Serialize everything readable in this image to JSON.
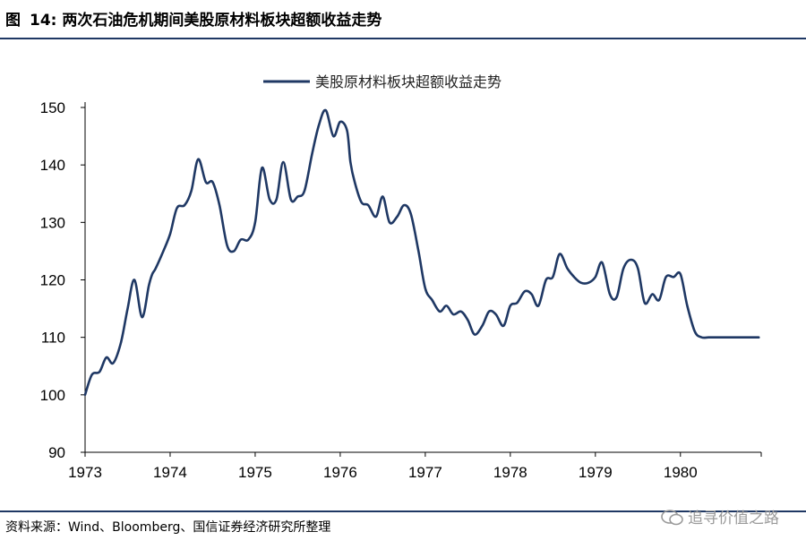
{
  "figure": {
    "label": "图",
    "number": "14:",
    "title": "两次石油危机期间美股原材料板块超额收益走势"
  },
  "source": "资料来源：Wind、Bloomberg、国信证券经济研究所整理",
  "watermark": "追寻价值之路",
  "colors": {
    "line": "#1f3864",
    "rule": "#1f3864",
    "axis": "#000000"
  },
  "chart_data": {
    "type": "line",
    "legend_position": "top-center",
    "grid": false,
    "xlim": [
      1973,
      1980.95
    ],
    "ylim": [
      90,
      150
    ],
    "xticks": [
      1973,
      1974,
      1975,
      1976,
      1977,
      1978,
      1979,
      1980
    ],
    "xtick_labels": [
      "1973",
      "1974",
      "1975",
      "1976",
      "1977",
      "1978",
      "1979",
      "1980"
    ],
    "yticks": [
      90,
      100,
      110,
      120,
      130,
      140,
      150
    ],
    "ytick_labels": [
      "90",
      "100",
      "110",
      "120",
      "130",
      "140",
      "150"
    ],
    "series": [
      {
        "name": "美股原材料板块超额收益走势",
        "x": [
          1973.0,
          1973.08,
          1973.17,
          1973.25,
          1973.33,
          1973.42,
          1973.5,
          1973.58,
          1973.67,
          1973.75,
          1973.79,
          1973.83,
          1973.92,
          1974.0,
          1974.08,
          1974.17,
          1974.25,
          1974.33,
          1974.42,
          1974.5,
          1974.58,
          1974.67,
          1974.75,
          1974.83,
          1974.92,
          1975.0,
          1975.08,
          1975.17,
          1975.25,
          1975.33,
          1975.42,
          1975.5,
          1975.58,
          1975.67,
          1975.75,
          1975.83,
          1975.92,
          1976.0,
          1976.08,
          1976.12,
          1976.17,
          1976.25,
          1976.33,
          1976.42,
          1976.5,
          1976.58,
          1976.67,
          1976.75,
          1976.83,
          1976.92,
          1977.0,
          1977.08,
          1977.17,
          1977.25,
          1977.33,
          1977.42,
          1977.5,
          1977.58,
          1977.67,
          1977.75,
          1977.83,
          1977.92,
          1978.0,
          1978.08,
          1978.17,
          1978.25,
          1978.33,
          1978.42,
          1978.5,
          1978.58,
          1978.67,
          1978.75,
          1978.83,
          1978.92,
          1979.0,
          1979.08,
          1979.17,
          1979.25,
          1979.33,
          1979.42,
          1979.5,
          1979.58,
          1979.67,
          1979.75,
          1979.83,
          1979.92,
          1980.0,
          1980.08,
          1980.17,
          1980.25,
          1980.33,
          1980.42,
          1980.5,
          1980.58,
          1980.67,
          1980.75,
          1980.83,
          1980.92
        ],
        "values": [
          100.0,
          103.5,
          104.0,
          106.5,
          105.5,
          109.0,
          115.0,
          120.0,
          113.5,
          119.0,
          121.0,
          122.0,
          125.0,
          128.0,
          132.5,
          133.0,
          135.5,
          141.0,
          137.0,
          137.0,
          133.0,
          126.0,
          125.0,
          127.0,
          127.0,
          130.0,
          139.5,
          134.0,
          134.0,
          140.5,
          134.0,
          134.5,
          135.5,
          142.0,
          147.0,
          149.5,
          145.0,
          147.5,
          146.0,
          140.5,
          137.0,
          133.5,
          133.0,
          131.0,
          134.5,
          130.0,
          131.0,
          133.0,
          131.5,
          125.0,
          118.5,
          116.5,
          114.5,
          115.5,
          114.0,
          114.5,
          113.0,
          110.5,
          112.0,
          114.5,
          114.0,
          112.0,
          115.5,
          116.0,
          118.0,
          117.5,
          115.5,
          120.0,
          120.5,
          124.5,
          122.0,
          120.5,
          119.5,
          119.5,
          120.5,
          123.0,
          117.5,
          117.0,
          122.0,
          123.5,
          122.0,
          116.0,
          117.5,
          116.5,
          120.5,
          120.5,
          121.0,
          115.5,
          111.0,
          110.0,
          110.0,
          110.0,
          110.0,
          110.0,
          110.0,
          110.0,
          110.0,
          110.0
        ]
      }
    ]
  }
}
